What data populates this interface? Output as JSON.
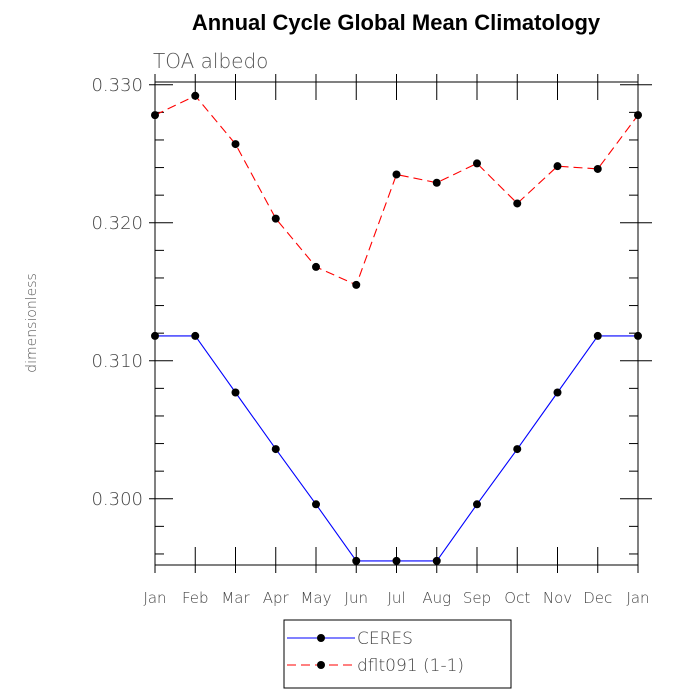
{
  "chart_data": {
    "type": "line",
    "title": "Annual Cycle Global Mean Climatology",
    "subtitle": "TOA albedo",
    "xlabel": "",
    "ylabel": "dimensionless",
    "categories": [
      "Jan",
      "Feb",
      "Mar",
      "Apr",
      "May",
      "Jun",
      "Jul",
      "Aug",
      "Sep",
      "Oct",
      "Nov",
      "Dec",
      "Jan"
    ],
    "ylim": [
      0.2952,
      0.3302
    ],
    "yticks": [
      0.3,
      0.31,
      0.32,
      0.33
    ],
    "ytick_labels": [
      "0.300",
      "0.310",
      "0.320",
      "0.330"
    ],
    "series": [
      {
        "name": "CERES",
        "color": "#0000ff",
        "dash": "solid",
        "marker": "filled-circle",
        "values": [
          0.3118,
          0.3118,
          0.3077,
          0.3036,
          0.2996,
          0.2955,
          0.2955,
          0.2955,
          0.2996,
          0.3036,
          0.3077,
          0.3118,
          0.3118
        ]
      },
      {
        "name": "dflt091 (1-1)",
        "color": "#ff0000",
        "dash": "dashed",
        "marker": "filled-circle",
        "values": [
          0.3278,
          0.3292,
          0.3257,
          0.3203,
          0.3168,
          0.3155,
          0.3235,
          0.3229,
          0.3243,
          0.3214,
          0.3241,
          0.3239,
          0.3278
        ]
      }
    ],
    "legend_position": "bottom-center"
  }
}
